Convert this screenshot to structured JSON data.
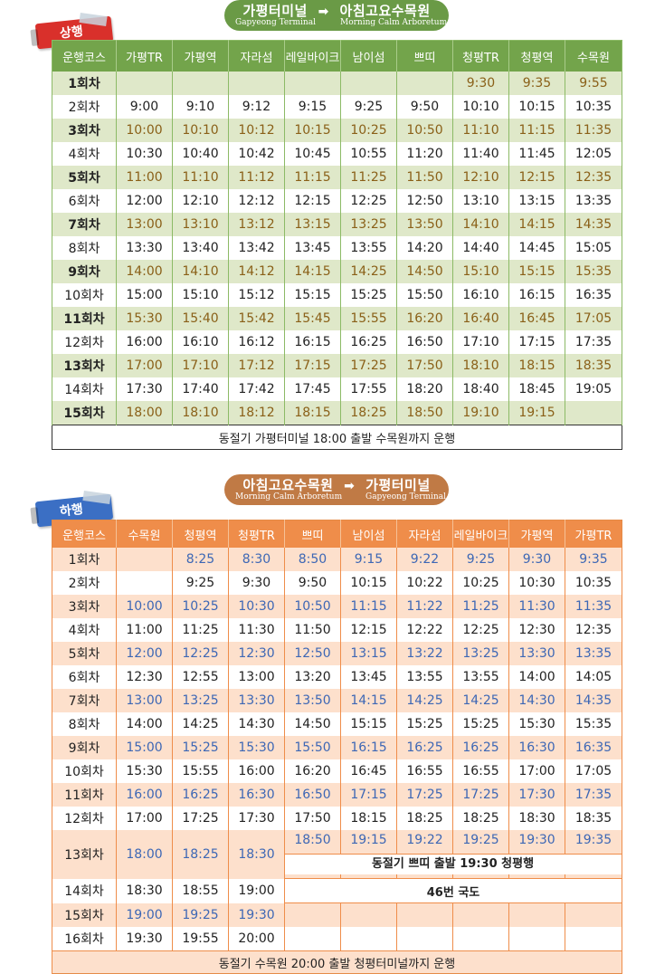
{
  "up": {
    "badge": "상행",
    "route_from": "가평터미널",
    "route_to": "아침고요수목원",
    "route_from_en": "Gapyeong Terminal",
    "route_to_en": "Morning Calm Arboretum",
    "headers": [
      "운행코스",
      "가평TR",
      "가평역",
      "자라섬",
      "레일바이크",
      "남이섬",
      "쁘띠",
      "청평TR",
      "청평역",
      "수목원"
    ],
    "rows": [
      [
        "1회차",
        "",
        "",
        "",
        "",
        "",
        "",
        "9:30",
        "9:35",
        "9:55"
      ],
      [
        "2회차",
        "9:00",
        "9:10",
        "9:12",
        "9:15",
        "9:25",
        "9:50",
        "10:10",
        "10:15",
        "10:35"
      ],
      [
        "3회차",
        "10:00",
        "10:10",
        "10:12",
        "10:15",
        "10:25",
        "10:50",
        "11:10",
        "11:15",
        "11:35"
      ],
      [
        "4회차",
        "10:30",
        "10:40",
        "10:42",
        "10:45",
        "10:55",
        "11:20",
        "11:40",
        "11:45",
        "12:05"
      ],
      [
        "5회차",
        "11:00",
        "11:10",
        "11:12",
        "11:15",
        "11:25",
        "11:50",
        "12:10",
        "12:15",
        "12:35"
      ],
      [
        "6회차",
        "12:00",
        "12:10",
        "12:12",
        "12:15",
        "12:25",
        "12:50",
        "13:10",
        "13:15",
        "13:35"
      ],
      [
        "7회차",
        "13:00",
        "13:10",
        "13:12",
        "13:15",
        "13:25",
        "13:50",
        "14:10",
        "14:15",
        "14:35"
      ],
      [
        "8회차",
        "13:30",
        "13:40",
        "13:42",
        "13:45",
        "13:55",
        "14:20",
        "14:40",
        "14:45",
        "15:05"
      ],
      [
        "9회차",
        "14:00",
        "14:10",
        "14:12",
        "14:15",
        "14:25",
        "14:50",
        "15:10",
        "15:15",
        "15:35"
      ],
      [
        "10회차",
        "15:00",
        "15:10",
        "15:12",
        "15:15",
        "15:25",
        "15:50",
        "16:10",
        "16:15",
        "16:35"
      ],
      [
        "11회차",
        "15:30",
        "15:40",
        "15:42",
        "15:45",
        "15:55",
        "16:20",
        "16:40",
        "16:45",
        "17:05"
      ],
      [
        "12회차",
        "16:00",
        "16:10",
        "16:12",
        "16:15",
        "16:25",
        "16:50",
        "17:10",
        "17:15",
        "17:35"
      ],
      [
        "13회차",
        "17:00",
        "17:10",
        "17:12",
        "17:15",
        "17:25",
        "17:50",
        "18:10",
        "18:15",
        "18:35"
      ],
      [
        "14회차",
        "17:30",
        "17:40",
        "17:42",
        "17:45",
        "17:55",
        "18:20",
        "18:40",
        "18:45",
        "19:05"
      ],
      [
        "15회차",
        "18:00",
        "18:10",
        "18:12",
        "18:15",
        "18:25",
        "18:50",
        "19:10",
        "19:15",
        ""
      ]
    ],
    "note": "동절기 가평터미널 18:00 출발 수목원까지 운행"
  },
  "down": {
    "badge": "하행",
    "route_from": "아침고요수목원",
    "route_to": "가평터미널",
    "route_from_en": "Morning Calm Arboretum",
    "route_to_en": "Gapyeong Terminal",
    "headers": [
      "운행코스",
      "수목원",
      "청평역",
      "청평TR",
      "쁘띠",
      "남이섬",
      "자라섬",
      "레일바이크",
      "가평역",
      "가평TR"
    ],
    "rows": [
      [
        "1회차",
        "",
        "8:25",
        "8:30",
        "8:50",
        "9:15",
        "9:22",
        "9:25",
        "9:30",
        "9:35"
      ],
      [
        "2회차",
        "",
        "9:25",
        "9:30",
        "9:50",
        "10:15",
        "10:22",
        "10:25",
        "10:30",
        "10:35"
      ],
      [
        "3회차",
        "10:00",
        "10:25",
        "10:30",
        "10:50",
        "11:15",
        "11:22",
        "11:25",
        "11:30",
        "11:35"
      ],
      [
        "4회차",
        "11:00",
        "11:25",
        "11:30",
        "11:50",
        "12:15",
        "12:22",
        "12:25",
        "12:30",
        "12:35"
      ],
      [
        "5회차",
        "12:00",
        "12:25",
        "12:30",
        "12:50",
        "13:15",
        "13:22",
        "13:25",
        "13:30",
        "13:35"
      ],
      [
        "6회차",
        "12:30",
        "12:55",
        "13:00",
        "13:20",
        "13:45",
        "13:55",
        "13:55",
        "14:00",
        "14:05"
      ],
      [
        "7회차",
        "13:00",
        "13:25",
        "13:30",
        "13:50",
        "14:15",
        "14:25",
        "14:25",
        "14:30",
        "14:35"
      ],
      [
        "8회차",
        "14:00",
        "14:25",
        "14:30",
        "14:50",
        "15:15",
        "15:25",
        "15:25",
        "15:30",
        "15:35"
      ],
      [
        "9회차",
        "15:00",
        "15:25",
        "15:30",
        "15:50",
        "16:15",
        "16:25",
        "16:25",
        "16:30",
        "16:35"
      ],
      [
        "10회차",
        "15:30",
        "15:55",
        "16:00",
        "16:20",
        "16:45",
        "16:55",
        "16:55",
        "17:00",
        "17:05"
      ],
      [
        "11회차",
        "16:00",
        "16:25",
        "16:30",
        "16:50",
        "17:15",
        "17:25",
        "17:25",
        "17:30",
        "17:35"
      ],
      [
        "12회차",
        "17:00",
        "17:25",
        "17:30",
        "17:50",
        "18:15",
        "18:25",
        "18:25",
        "18:30",
        "18:35"
      ],
      [
        "13회차",
        "18:00",
        "18:25",
        "18:30",
        "18:50",
        "19:15",
        "19:22",
        "19:25",
        "19:30",
        "19:35"
      ],
      [
        "14회차",
        "18:30",
        "18:55",
        "19:00"
      ],
      [
        "15회차",
        "19:00",
        "19:25",
        "19:30"
      ],
      [
        "16회차",
        "19:30",
        "19:55",
        "20:00"
      ]
    ],
    "note_13": "동절기 쁘띠 출발 19:30 청평행",
    "note_14": "46번 국도",
    "note": "동절기 수목원 20:00 출발 청평터미널까지 운행"
  },
  "colors": {
    "up_header": "#73a44b",
    "up_alt_row": "#dfe8c9",
    "up_alt_text": "#8a6018",
    "down_header": "#ef8d4a",
    "down_alt_row": "#fde0cc",
    "down_alt_text": "#3d67b5",
    "badge_up": "#d9302b",
    "badge_down": "#3b6fc4"
  }
}
